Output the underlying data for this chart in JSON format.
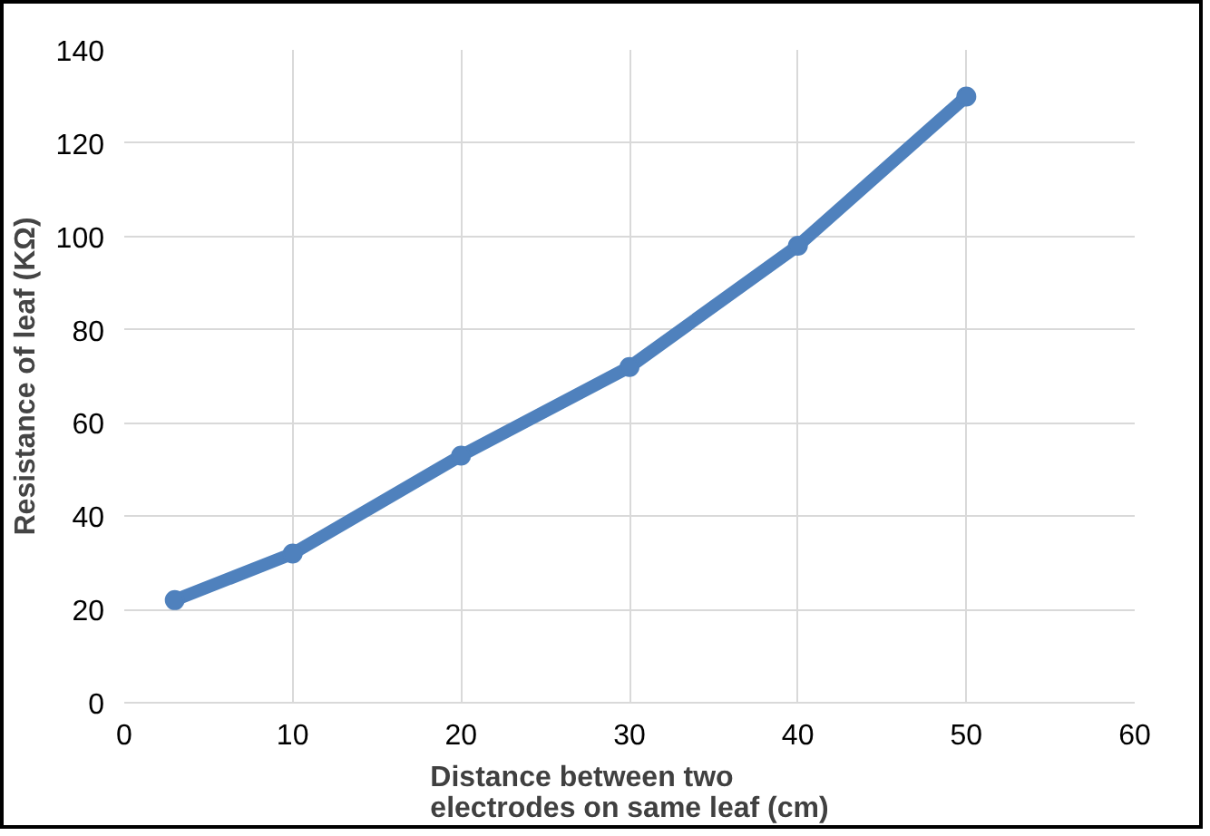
{
  "chart_data": {
    "type": "line",
    "xlabel": "Distance between two\nelectrodes on same leaf (cm)",
    "ylabel": "Resistance of leaf (KΩ)",
    "x": [
      3,
      10,
      20,
      30,
      40,
      50
    ],
    "series": [
      {
        "color": "#4f81bd",
        "values": [
          22,
          32,
          53,
          72,
          98,
          130
        ]
      }
    ],
    "xlim": [
      0,
      60
    ],
    "xticks": [
      0,
      10,
      20,
      30,
      40,
      50,
      60
    ],
    "ylim": [
      0,
      140
    ],
    "yticks": [
      0,
      20,
      40,
      60,
      80,
      100,
      120,
      140
    ],
    "grid": true,
    "marker": "circle",
    "line_style": "solid"
  }
}
